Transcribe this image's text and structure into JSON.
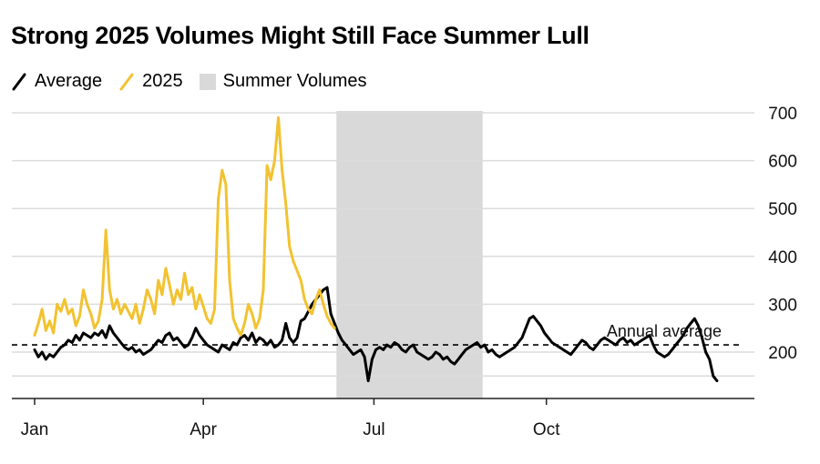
{
  "chart_data": {
    "type": "line",
    "title": "Strong 2025 Volumes Might Still Face Summer Lull",
    "legend": [
      {
        "label": "Average",
        "kind": "line",
        "color": "#000000"
      },
      {
        "label": "2025",
        "kind": "line",
        "color": "#f2c230"
      },
      {
        "label": "Summer Volumes",
        "kind": "box",
        "color": "#d9d9d9"
      }
    ],
    "x_ticks": [
      "Jan",
      "Apr",
      "Jul",
      "Oct"
    ],
    "x_tick_days": [
      0,
      90,
      181,
      273
    ],
    "x_range": [
      0,
      365
    ],
    "y_ticks": [
      200,
      300,
      400,
      500,
      600,
      700
    ],
    "y_range": [
      110,
      720
    ],
    "grid": true,
    "annual_average": {
      "value": 215,
      "label": "Annual average"
    },
    "summer_band": {
      "start_day": 161,
      "end_day": 239
    },
    "series": [
      {
        "name": "Average",
        "color": "#000000",
        "points": [
          [
            0,
            205
          ],
          [
            2,
            190
          ],
          [
            4,
            200
          ],
          [
            6,
            185
          ],
          [
            8,
            195
          ],
          [
            10,
            190
          ],
          [
            12,
            200
          ],
          [
            14,
            210
          ],
          [
            16,
            215
          ],
          [
            18,
            225
          ],
          [
            20,
            220
          ],
          [
            22,
            235
          ],
          [
            24,
            225
          ],
          [
            26,
            240
          ],
          [
            28,
            235
          ],
          [
            30,
            230
          ],
          [
            32,
            240
          ],
          [
            34,
            235
          ],
          [
            36,
            245
          ],
          [
            38,
            230
          ],
          [
            40,
            255
          ],
          [
            42,
            240
          ],
          [
            44,
            230
          ],
          [
            46,
            220
          ],
          [
            48,
            210
          ],
          [
            50,
            205
          ],
          [
            52,
            210
          ],
          [
            54,
            200
          ],
          [
            56,
            205
          ],
          [
            58,
            195
          ],
          [
            60,
            200
          ],
          [
            62,
            205
          ],
          [
            64,
            215
          ],
          [
            66,
            225
          ],
          [
            68,
            220
          ],
          [
            70,
            235
          ],
          [
            72,
            240
          ],
          [
            74,
            225
          ],
          [
            76,
            230
          ],
          [
            78,
            220
          ],
          [
            80,
            210
          ],
          [
            82,
            215
          ],
          [
            84,
            230
          ],
          [
            86,
            250
          ],
          [
            88,
            235
          ],
          [
            90,
            225
          ],
          [
            92,
            215
          ],
          [
            94,
            210
          ],
          [
            96,
            205
          ],
          [
            98,
            200
          ],
          [
            100,
            215
          ],
          [
            102,
            210
          ],
          [
            104,
            205
          ],
          [
            106,
            220
          ],
          [
            108,
            215
          ],
          [
            110,
            230
          ],
          [
            112,
            235
          ],
          [
            114,
            225
          ],
          [
            116,
            240
          ],
          [
            118,
            220
          ],
          [
            120,
            230
          ],
          [
            122,
            225
          ],
          [
            124,
            215
          ],
          [
            126,
            225
          ],
          [
            128,
            210
          ],
          [
            130,
            215
          ],
          [
            132,
            225
          ],
          [
            134,
            260
          ],
          [
            136,
            230
          ],
          [
            138,
            220
          ],
          [
            140,
            230
          ],
          [
            142,
            265
          ],
          [
            144,
            270
          ],
          [
            146,
            285
          ],
          [
            148,
            300
          ],
          [
            150,
            310
          ],
          [
            152,
            320
          ],
          [
            154,
            330
          ],
          [
            156,
            335
          ],
          [
            158,
            280
          ],
          [
            160,
            260
          ],
          [
            162,
            240
          ],
          [
            164,
            225
          ],
          [
            166,
            215
          ],
          [
            168,
            205
          ],
          [
            170,
            195
          ],
          [
            172,
            200
          ],
          [
            174,
            205
          ],
          [
            176,
            190
          ],
          [
            178,
            140
          ],
          [
            180,
            185
          ],
          [
            182,
            205
          ],
          [
            184,
            210
          ],
          [
            186,
            205
          ],
          [
            188,
            215
          ],
          [
            190,
            210
          ],
          [
            192,
            220
          ],
          [
            194,
            215
          ],
          [
            196,
            205
          ],
          [
            198,
            200
          ],
          [
            200,
            210
          ],
          [
            202,
            215
          ],
          [
            204,
            200
          ],
          [
            206,
            195
          ],
          [
            208,
            190
          ],
          [
            210,
            185
          ],
          [
            212,
            190
          ],
          [
            214,
            200
          ],
          [
            216,
            195
          ],
          [
            218,
            185
          ],
          [
            220,
            190
          ],
          [
            222,
            180
          ],
          [
            224,
            175
          ],
          [
            226,
            185
          ],
          [
            228,
            195
          ],
          [
            230,
            205
          ],
          [
            232,
            210
          ],
          [
            234,
            215
          ],
          [
            236,
            220
          ],
          [
            238,
            210
          ],
          [
            240,
            215
          ],
          [
            242,
            200
          ],
          [
            244,
            205
          ],
          [
            246,
            195
          ],
          [
            248,
            190
          ],
          [
            250,
            195
          ],
          [
            252,
            200
          ],
          [
            254,
            205
          ],
          [
            256,
            210
          ],
          [
            258,
            220
          ],
          [
            260,
            230
          ],
          [
            262,
            250
          ],
          [
            264,
            270
          ],
          [
            266,
            275
          ],
          [
            268,
            265
          ],
          [
            270,
            255
          ],
          [
            272,
            240
          ],
          [
            274,
            230
          ],
          [
            276,
            220
          ],
          [
            278,
            215
          ],
          [
            280,
            210
          ],
          [
            282,
            205
          ],
          [
            284,
            200
          ],
          [
            286,
            195
          ],
          [
            288,
            205
          ],
          [
            290,
            215
          ],
          [
            292,
            225
          ],
          [
            294,
            220
          ],
          [
            296,
            210
          ],
          [
            298,
            205
          ],
          [
            300,
            215
          ],
          [
            302,
            225
          ],
          [
            304,
            230
          ],
          [
            306,
            225
          ],
          [
            308,
            220
          ],
          [
            310,
            215
          ],
          [
            312,
            225
          ],
          [
            314,
            230
          ],
          [
            316,
            220
          ],
          [
            318,
            225
          ],
          [
            320,
            215
          ],
          [
            322,
            220
          ],
          [
            324,
            225
          ],
          [
            326,
            230
          ],
          [
            328,
            235
          ],
          [
            330,
            215
          ],
          [
            332,
            200
          ],
          [
            334,
            195
          ],
          [
            336,
            190
          ],
          [
            338,
            195
          ],
          [
            340,
            205
          ],
          [
            342,
            215
          ],
          [
            344,
            225
          ],
          [
            346,
            235
          ],
          [
            348,
            250
          ],
          [
            350,
            260
          ],
          [
            352,
            270
          ],
          [
            354,
            255
          ],
          [
            356,
            230
          ],
          [
            358,
            200
          ],
          [
            360,
            185
          ],
          [
            362,
            150
          ],
          [
            364,
            140
          ]
        ]
      },
      {
        "name": "2025",
        "color": "#f2c230",
        "points": [
          [
            0,
            235
          ],
          [
            2,
            260
          ],
          [
            4,
            290
          ],
          [
            6,
            245
          ],
          [
            8,
            265
          ],
          [
            10,
            240
          ],
          [
            12,
            300
          ],
          [
            14,
            285
          ],
          [
            16,
            310
          ],
          [
            18,
            280
          ],
          [
            20,
            290
          ],
          [
            22,
            255
          ],
          [
            24,
            275
          ],
          [
            26,
            330
          ],
          [
            28,
            300
          ],
          [
            30,
            280
          ],
          [
            32,
            250
          ],
          [
            34,
            265
          ],
          [
            36,
            310
          ],
          [
            38,
            455
          ],
          [
            40,
            330
          ],
          [
            42,
            290
          ],
          [
            44,
            310
          ],
          [
            46,
            280
          ],
          [
            48,
            300
          ],
          [
            50,
            285
          ],
          [
            52,
            270
          ],
          [
            54,
            300
          ],
          [
            56,
            260
          ],
          [
            58,
            290
          ],
          [
            60,
            330
          ],
          [
            62,
            310
          ],
          [
            64,
            280
          ],
          [
            66,
            350
          ],
          [
            68,
            320
          ],
          [
            70,
            375
          ],
          [
            72,
            340
          ],
          [
            74,
            300
          ],
          [
            76,
            330
          ],
          [
            78,
            310
          ],
          [
            80,
            365
          ],
          [
            82,
            320
          ],
          [
            84,
            335
          ],
          [
            86,
            290
          ],
          [
            88,
            320
          ],
          [
            90,
            295
          ],
          [
            92,
            270
          ],
          [
            94,
            260
          ],
          [
            96,
            290
          ],
          [
            98,
            520
          ],
          [
            100,
            580
          ],
          [
            102,
            550
          ],
          [
            104,
            350
          ],
          [
            106,
            270
          ],
          [
            108,
            250
          ],
          [
            110,
            235
          ],
          [
            112,
            260
          ],
          [
            114,
            300
          ],
          [
            116,
            280
          ],
          [
            118,
            250
          ],
          [
            120,
            270
          ],
          [
            122,
            330
          ],
          [
            124,
            590
          ],
          [
            126,
            560
          ],
          [
            128,
            600
          ],
          [
            130,
            690
          ],
          [
            132,
            580
          ],
          [
            134,
            510
          ],
          [
            136,
            420
          ],
          [
            138,
            390
          ],
          [
            140,
            370
          ],
          [
            142,
            350
          ],
          [
            144,
            310
          ],
          [
            146,
            290
          ],
          [
            148,
            280
          ],
          [
            150,
            310
          ],
          [
            152,
            330
          ],
          [
            154,
            300
          ],
          [
            156,
            275
          ],
          [
            158,
            260
          ],
          [
            160,
            250
          ]
        ]
      }
    ]
  }
}
